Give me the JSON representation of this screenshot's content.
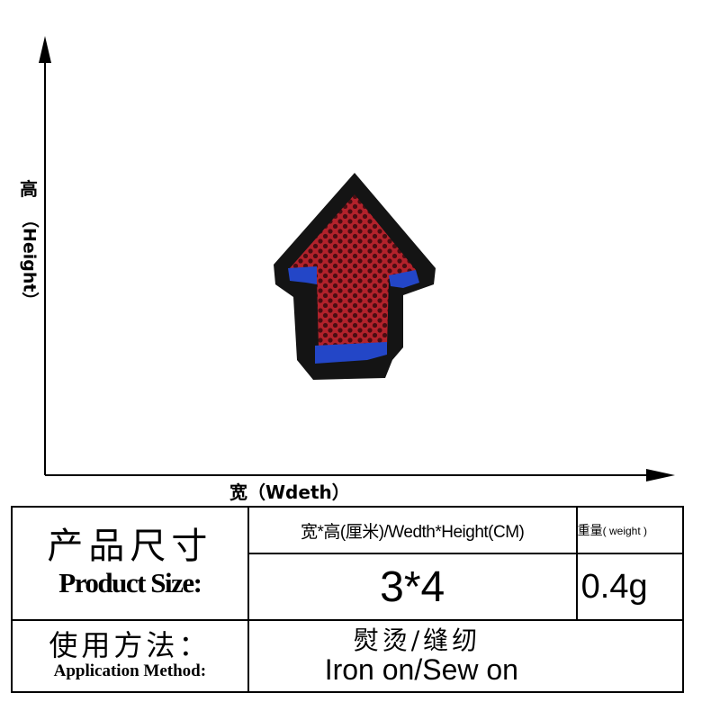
{
  "axes": {
    "y_label_cn": "高",
    "y_label_en": "（Height）",
    "x_label": "宽（Wdeth）"
  },
  "product_image": {
    "subject": "embroidered arrow patch",
    "colors": {
      "border": "#141414",
      "fill": "#b3222b",
      "dots": "#4a0d12",
      "accent": "#2346c7"
    }
  },
  "table": {
    "size_label_cn": "产品尺寸",
    "size_label_en": "Product Size:",
    "dim_header": "宽*高(厘米)/Wedth*Height(CM)",
    "weight_header_cn": "重量",
    "weight_header_en": "( weight )",
    "dim_value": "3*4",
    "weight_value": "0.4g",
    "method_label_cn": "使用方法：",
    "method_label_en": "Application Method:",
    "method_value_cn": "熨烫/缝纫",
    "method_value_en": "Iron on/Sew on"
  }
}
